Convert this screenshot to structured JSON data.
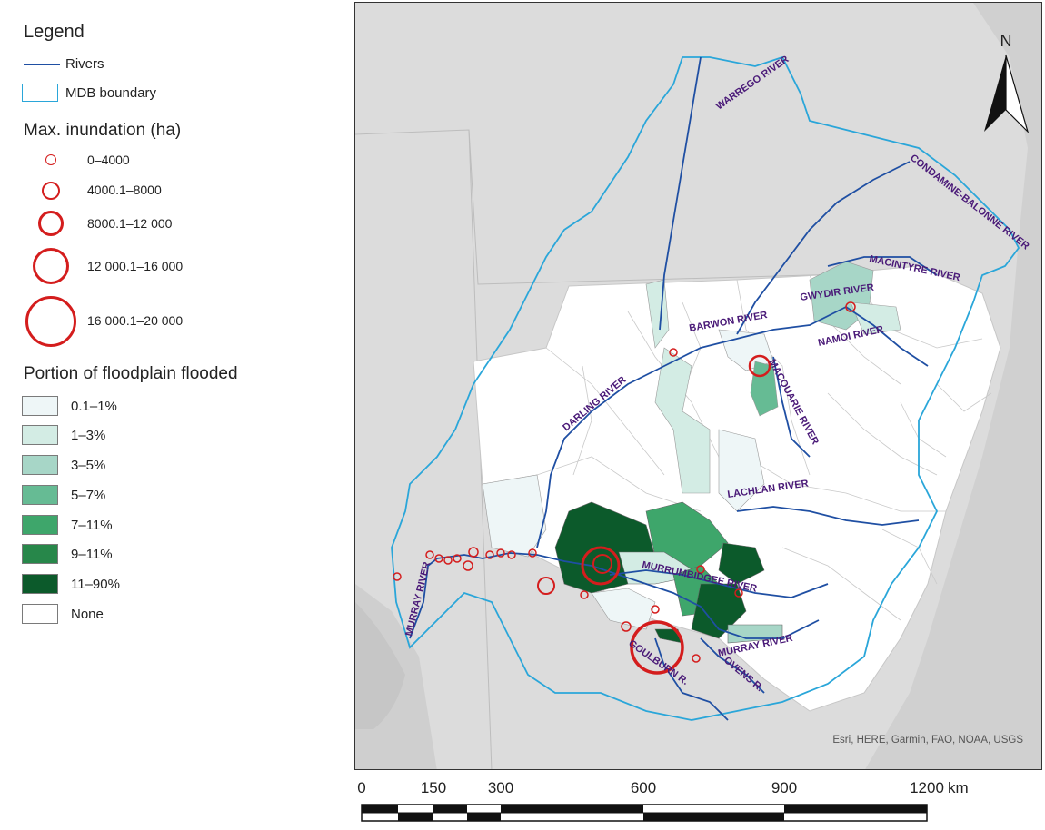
{
  "legend": {
    "title": "Legend",
    "rivers_label": "Rivers",
    "boundary_label": "MDB boundary",
    "inundation_title": "Max. inundation (ha)",
    "inundation_classes": [
      "0–4000",
      "4000.1–8000",
      "8000.1–12 000",
      "12 000.1–16 000",
      "16 000.1–20 000"
    ],
    "floodplain_title": "Portion of floodplain flooded",
    "floodplain_classes": [
      {
        "label": "0.1–1%",
        "color": "#eef6f7"
      },
      {
        "label": "1–3%",
        "color": "#d3ece4"
      },
      {
        "label": "3–5%",
        "color": "#a7d6c7"
      },
      {
        "label": "5–7%",
        "color": "#66bb94"
      },
      {
        "label": "7–11%",
        "color": "#3ea66b"
      },
      {
        "label": "9–11%",
        "color": "#27874a"
      },
      {
        "label": "11–90%",
        "color": "#0c5a2b"
      },
      {
        "label": "None",
        "color": "#ffffff"
      }
    ]
  },
  "map": {
    "north_label": "N",
    "attribution": "Esri, HERE, Garmin, FAO, NOAA, USGS",
    "rivers": {
      "warrego": "WARREGO RIVER",
      "condamine": "CONDAMINE-BALONNE RIVER",
      "macintyre": "MACINTYRE RIVER",
      "gwydir": "GWYDIR RIVER",
      "barwon": "BARWON RIVER",
      "namoi": "NAMOI RIVER",
      "macquarie": "MACQUARIE RIVER",
      "darling": "DARLING RIVER",
      "lachlan": "LACHLAN RIVER",
      "murrumbidgee": "MURRUMBIDGEE RIVER",
      "murray_east": "MURRAY RIVER",
      "murray_west": "MURRAY RIVER",
      "goulburn": "GOULBURN R.",
      "ovens": "OVENS R."
    },
    "colors": {
      "river": "#1f4fa3",
      "boundary": "#2aa6d9",
      "circle": "#d41d1d",
      "label": "#4a1a78"
    }
  },
  "scalebar": {
    "ticks": [
      "0",
      "150",
      "300",
      "600",
      "900",
      "1200"
    ],
    "unit": "km"
  }
}
